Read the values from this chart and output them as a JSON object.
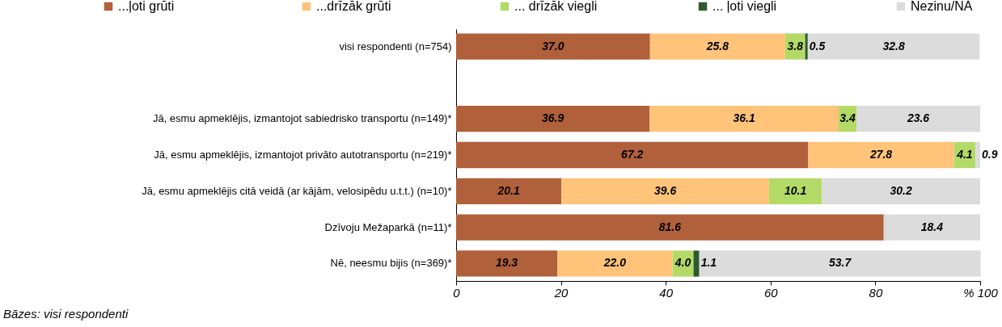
{
  "chart_data": {
    "type": "bar",
    "orientation": "horizontal",
    "stacked": true,
    "grid": false,
    "legend": "top",
    "categories": [
      "visi respondenti (n=754)",
      null,
      "Jā, esmu apmeklējis, izmantojot sabiedrisko transportu (n=149)*",
      "Jā, esmu apmeklējis, izmantojot privāto autotransportu (n=219)*",
      "Jā, esmu apmeklējis citā veidā (ar kājām, velosipēdu u.t.t.) (n=10)*",
      "Dzīvoju Mežaparkā (n=11)*",
      "Nē, neesmu bijis (n=369)*"
    ],
    "series": [
      {
        "name": "...ļoti grūti",
        "color": "#b0603a",
        "values": [
          37.0,
          null,
          36.9,
          67.2,
          20.1,
          81.6,
          19.3
        ],
        "value_labels": [
          "37.0",
          null,
          "36.9",
          "67.2",
          "20.1",
          "81.6",
          "19.3"
        ]
      },
      {
        "name": "...drīzāk grūti",
        "color": "#ffc37a",
        "values": [
          25.8,
          null,
          36.1,
          27.8,
          39.6,
          null,
          22.0
        ],
        "value_labels": [
          "25.8",
          null,
          "36.1",
          "27.8",
          "39.6",
          null,
          "22.0"
        ]
      },
      {
        "name": "... drīzāk viegli",
        "color": "#b3da66",
        "values": [
          3.8,
          null,
          3.4,
          4.1,
          10.1,
          null,
          4.0
        ],
        "value_labels": [
          "3.8",
          null,
          "3.4",
          "4.1",
          "10.1",
          null,
          "4.0"
        ]
      },
      {
        "name": "... ļoti viegli",
        "color": "#2d5a2d",
        "values": [
          0.5,
          null,
          null,
          null,
          null,
          null,
          1.1
        ],
        "value_labels": [
          "0.5",
          null,
          null,
          null,
          null,
          null,
          "1.1"
        ]
      },
      {
        "name": "Nezinu/NA",
        "color": "#dcdcdc",
        "values": [
          32.8,
          null,
          23.6,
          0.9,
          30.2,
          18.4,
          53.7
        ],
        "value_labels": [
          "32.8",
          null,
          "23.6",
          "0.9",
          "30.2",
          "18.4",
          "53.7"
        ]
      }
    ],
    "xlim": [
      0,
      100
    ],
    "xticks": [
      0,
      20,
      40,
      60,
      80,
      {
        "value": 100,
        "label": "% 100"
      }
    ],
    "annotations": [
      "Bāzes: visi respondenti"
    ]
  }
}
